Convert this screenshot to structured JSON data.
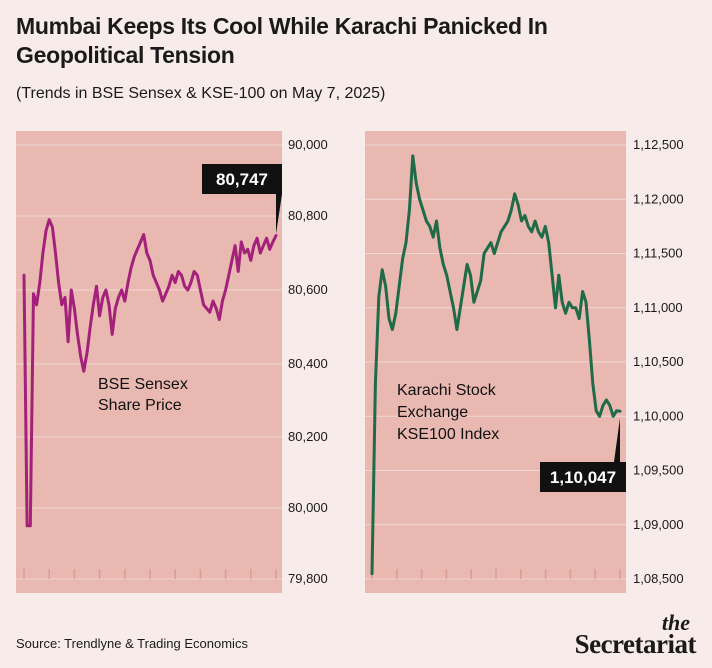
{
  "header": {
    "title": "Mumbai Keeps Its Cool While Karachi Panicked In Geopolitical Tension",
    "subtitle": "(Trends in BSE Sensex & KSE-100 on May 7, 2025)"
  },
  "footer": {
    "source": "Source: Trendlyne & Trading Economics",
    "brand_the": "the",
    "brand_name": "Secretariat"
  },
  "colors": {
    "page_background": "#f7ecea",
    "panel_background": "#e8b8b1",
    "sensex_line": "#a3217a",
    "kse_line": "#1f6a47",
    "callout_background": "#111111"
  },
  "chart_data": [
    {
      "type": "line",
      "title": "",
      "label": "BSE Sensex Share Price",
      "label_lines": [
        "BSE Sensex",
        "Share Price"
      ],
      "ylim": [
        79800,
        90000
      ],
      "yticks": [
        79800,
        80000,
        80200,
        80400,
        80600,
        80800,
        90000
      ],
      "ytick_labels": [
        "79,800",
        "80,000",
        "80,200",
        "80,400",
        "80,600",
        "80,800",
        "90,000"
      ],
      "grid": false,
      "callout": "80,747",
      "series": [
        {
          "values": [
            80640,
            79950,
            79950,
            80590,
            80560,
            80620,
            80700,
            80760,
            80790,
            80770,
            80700,
            80620,
            80560,
            80580,
            80460,
            80600,
            80550,
            80480,
            80420,
            80380,
            80430,
            80500,
            80560,
            80610,
            80530,
            80580,
            80600,
            80560,
            80480,
            80550,
            80580,
            80600,
            80570,
            80620,
            80660,
            80690,
            80710,
            80730,
            80750,
            80700,
            80680,
            80640,
            80620,
            80600,
            80570,
            80590,
            80610,
            80640,
            80620,
            80650,
            80640,
            80610,
            80600,
            80620,
            80650,
            80640,
            80600,
            80560,
            80550,
            80540,
            80570,
            80550,
            80520,
            80570,
            80600,
            80640,
            80680,
            80720,
            80650,
            80730,
            80700,
            80710,
            80680,
            80720,
            80740,
            80700,
            80720,
            80740,
            80710,
            80730,
            80747
          ]
        }
      ]
    },
    {
      "type": "line",
      "title": "",
      "label": "Karachi Stock Exchange KSE100 Index",
      "label_lines": [
        "Karachi Stock",
        "Exchange",
        "KSE100 Index"
      ],
      "ylim": [
        108500,
        112500
      ],
      "yticks": [
        108500,
        109000,
        109500,
        110000,
        110500,
        111000,
        111500,
        112000,
        112500
      ],
      "ytick_labels": [
        "1,08,500",
        "1,09,000",
        "1,09,500",
        "1,10,000",
        "1,10,500",
        "1,11,000",
        "1,11,500",
        "1,12,000",
        "1,12,500"
      ],
      "grid": false,
      "callout": "1,10,047",
      "series": [
        {
          "values": [
            108550,
            110300,
            111100,
            111350,
            111200,
            110900,
            110800,
            110950,
            111200,
            111450,
            111600,
            111900,
            112400,
            112150,
            112000,
            111900,
            111800,
            111750,
            111650,
            111800,
            111550,
            111400,
            111300,
            111150,
            111000,
            110800,
            111000,
            111200,
            111400,
            111300,
            111050,
            111150,
            111250,
            111500,
            111550,
            111600,
            111500,
            111600,
            111700,
            111750,
            111800,
            111900,
            112050,
            111950,
            111800,
            111850,
            111750,
            111700,
            111800,
            111700,
            111650,
            111750,
            111600,
            111300,
            111000,
            111300,
            111050,
            110950,
            111050,
            111000,
            111000,
            110900,
            111150,
            111050,
            110700,
            110300,
            110050,
            110000,
            110100,
            110150,
            110100,
            110000,
            110050,
            110047
          ]
        }
      ]
    }
  ]
}
